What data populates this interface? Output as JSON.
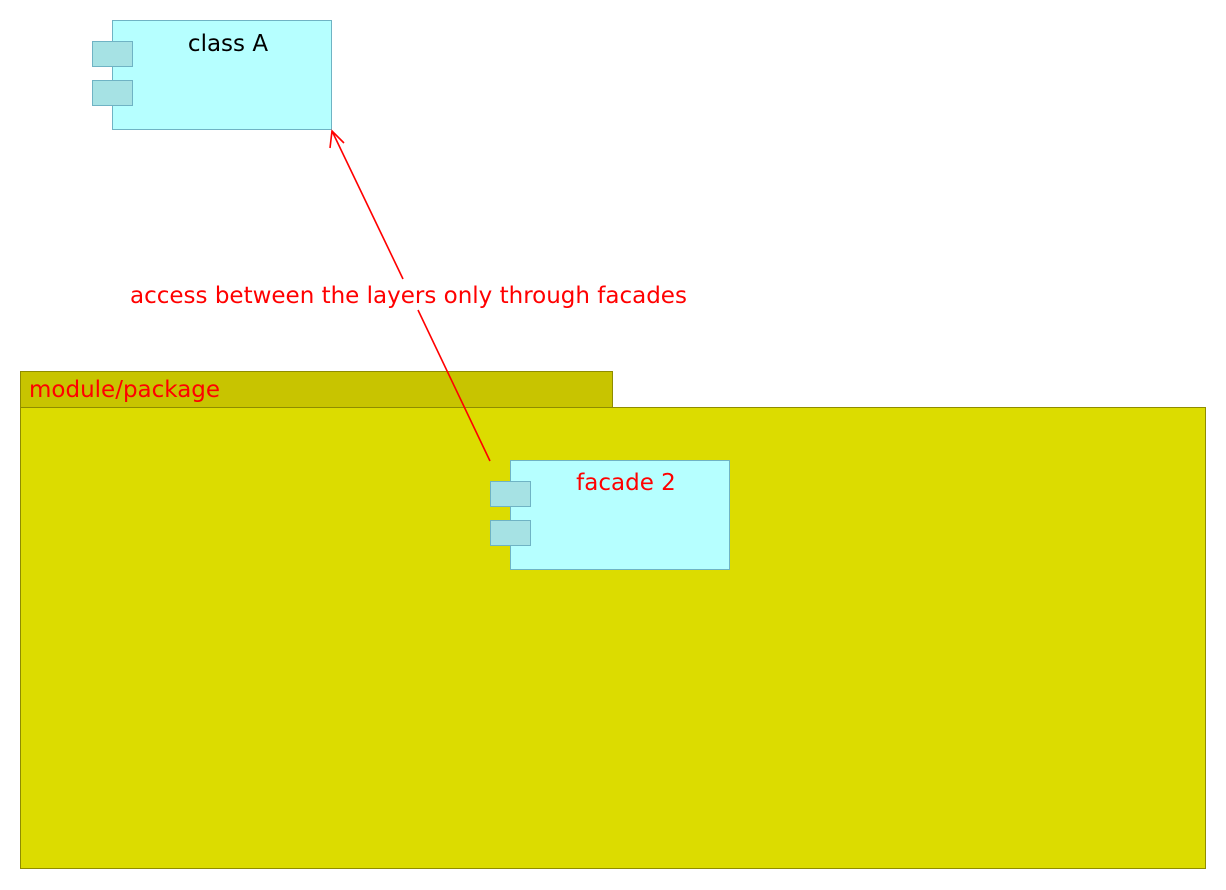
{
  "package": {
    "label": "module/package"
  },
  "components": {
    "class_a": {
      "title": "class A"
    },
    "facade_2": {
      "title": "facade 2"
    }
  },
  "connector": {
    "label": "access between the layers only through facades"
  },
  "colors": {
    "package_fill": "#dcdc00",
    "package_tab_fill": "#c8c400",
    "package_border": "#8f8c00",
    "component_fill": "#b6ffff",
    "component_port_fill": "#a6e2e4",
    "component_border": "#6fb3c4",
    "highlight_text": "#ff0000",
    "default_text": "#000000",
    "arrow": "#ff0000"
  }
}
